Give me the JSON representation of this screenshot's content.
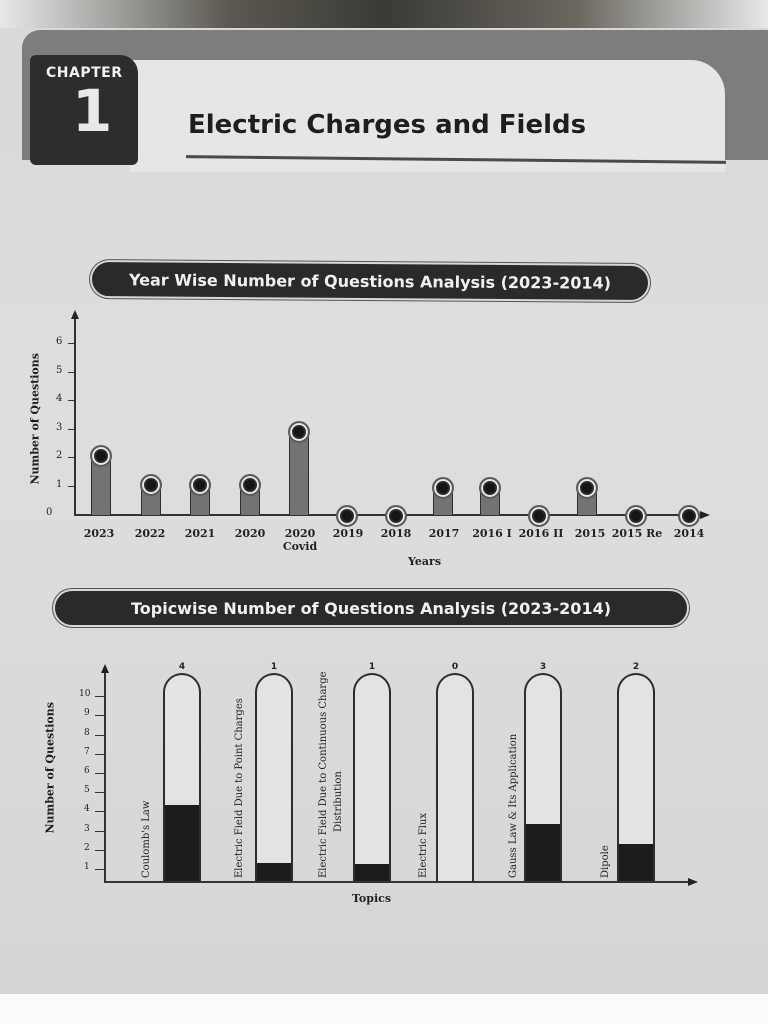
{
  "chapter": {
    "label": "CHAPTER",
    "number": "1",
    "title": "Electric Charges and Fields"
  },
  "chart_data": [
    {
      "type": "bar",
      "title": "Year Wise Number of Questions Analysis (2023-2014)",
      "xlabel": "Years",
      "ylabel": "Number of Questions",
      "ylim": [
        0,
        6
      ],
      "yticks": [
        "0",
        "1",
        "2",
        "3",
        "4",
        "5",
        "6"
      ],
      "categories": [
        "2023",
        "2022",
        "2021",
        "2020",
        "2020 Covid",
        "2019",
        "2018",
        "2017",
        "2016 I",
        "2016 II",
        "2015",
        "2015 Re",
        "2014"
      ],
      "values": [
        2,
        1,
        1,
        1,
        3,
        0,
        0,
        1,
        1,
        0,
        1,
        0,
        0
      ],
      "grid": false,
      "legend": null
    },
    {
      "type": "bar",
      "title": "Topicwise Number of Questions Analysis (2023-2014)",
      "xlabel": "Topics",
      "ylabel": "Number of Questions",
      "ylim": [
        0,
        10
      ],
      "yticks": [
        "1",
        "2",
        "3",
        "4",
        "5",
        "6",
        "7",
        "8",
        "9",
        "10"
      ],
      "categories": [
        "Coulomb's Law",
        "Electric Field Due to Point Charges",
        "Electric Field Due to Continuous Charge Distribution",
        "Electric Flux",
        "Gauss Law & Its Application",
        "Dipole"
      ],
      "values": [
        4,
        1,
        1,
        0,
        3,
        2
      ],
      "grid": false,
      "legend": null
    }
  ],
  "year_chart": {
    "title": "Year Wise Number of Questions Analysis (2023-2014)",
    "ylabel": "Number of Questions",
    "xlabel": "Years",
    "yticks": [
      "0",
      "1",
      "2",
      "3",
      "4",
      "5",
      "6"
    ],
    "labels": [
      "2023",
      "2022",
      "2021",
      "2020",
      "2020",
      "2019",
      "2018",
      "2017",
      "2016 I",
      "2016 II",
      "2015",
      "2015 Re",
      "2014"
    ],
    "sublabel_covid": "Covid"
  },
  "topic_chart": {
    "title": "Topicwise Number of Questions Analysis (2023-2014)",
    "ylabel": "Number of Questions",
    "xlabel": "Topics",
    "yticks": [
      "1",
      "2",
      "3",
      "4",
      "5",
      "6",
      "7",
      "8",
      "9",
      "10"
    ],
    "topics": [
      {
        "label": "Coulomb's Law",
        "label2": "",
        "value": "4"
      },
      {
        "label": "Electric Field Due to Point Charges",
        "label2": "",
        "value": "1"
      },
      {
        "label": "Electric Field Due to Continuous Charge",
        "label2": "Distribution",
        "value": "1"
      },
      {
        "label": "Electric Flux",
        "label2": "",
        "value": "0"
      },
      {
        "label": "Gauss Law & Its Application",
        "label2": "",
        "value": "3"
      },
      {
        "label": "Dipole",
        "label2": "",
        "value": "2"
      }
    ]
  }
}
